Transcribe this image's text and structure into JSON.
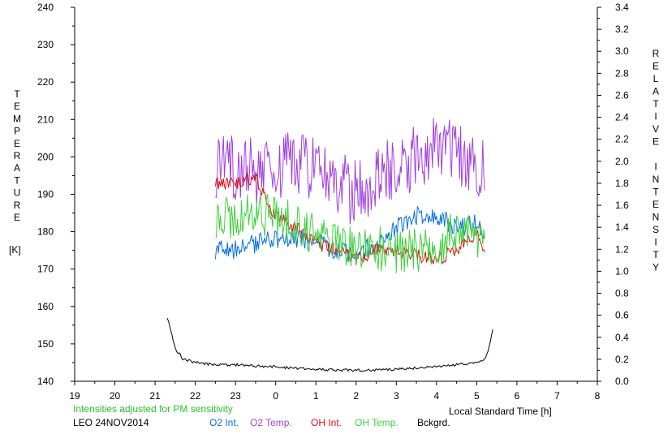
{
  "chart_data": {
    "type": "line",
    "x_unit": "hours (local standard time)",
    "xlim": [
      19,
      32
    ],
    "x_ticks": [
      19,
      20,
      21,
      22,
      23,
      24,
      25,
      26,
      27,
      28,
      29,
      30,
      31,
      32
    ],
    "x_tick_labels": [
      "19",
      "20",
      "21",
      "22",
      "23",
      "0",
      "1",
      "2",
      "3",
      "4",
      "5",
      "6",
      "7",
      "8"
    ],
    "xlabel": "Local Standard Time [h]",
    "ylim_left": [
      140,
      240
    ],
    "y_ticks_left": [
      140,
      150,
      160,
      170,
      180,
      190,
      200,
      210,
      220,
      230,
      240
    ],
    "ylabel_left": "TEMPERATURE",
    "ylabel_left_unit": "[K]",
    "ylim_right": [
      0.0,
      3.4
    ],
    "y_ticks_right": [
      "0.0",
      "0.2",
      "0.4",
      "0.6",
      "0.8",
      "1.0",
      "1.2",
      "1.4",
      "1.6",
      "1.8",
      "2.0",
      "2.2",
      "2.4",
      "2.6",
      "2.8",
      "3.0",
      "3.2",
      "3.4"
    ],
    "ylabel_right": "RELATIVE INTENSITY",
    "note": "Intensities adjusted for PM sensitivity",
    "station_label": "LEO 24NOV2014",
    "legend_position": "bottom",
    "series": [
      {
        "name": "O2 Int.",
        "axis": "right",
        "color": "#0a6ee6",
        "x": [
          22.5,
          23.0,
          23.5,
          24.0,
          24.5,
          25.0,
          25.5,
          26.0,
          26.5,
          27.0,
          27.5,
          28.0,
          28.5,
          29.0,
          29.2
        ],
        "y": [
          1.2,
          1.2,
          1.25,
          1.3,
          1.3,
          1.25,
          1.2,
          1.15,
          1.25,
          1.4,
          1.5,
          1.5,
          1.4,
          1.45,
          1.35
        ]
      },
      {
        "name": "O2 Temp.",
        "axis": "left",
        "color": "#a040e0",
        "x": [
          22.5,
          23.0,
          23.5,
          24.0,
          24.5,
          25.0,
          25.5,
          26.0,
          26.5,
          27.0,
          27.5,
          28.0,
          28.5,
          29.0,
          29.2
        ],
        "y": [
          198,
          197,
          196,
          197,
          198,
          196,
          193,
          190,
          194,
          198,
          200,
          203,
          201,
          198,
          196
        ]
      },
      {
        "name": "OH Int.",
        "axis": "right",
        "color": "#e01010",
        "x": [
          22.5,
          23.0,
          23.5,
          24.0,
          24.5,
          25.0,
          25.5,
          26.0,
          26.5,
          27.0,
          27.5,
          28.0,
          28.5,
          29.0,
          29.2
        ],
        "y": [
          1.8,
          1.8,
          1.85,
          1.5,
          1.4,
          1.25,
          1.2,
          1.1,
          1.2,
          1.2,
          1.15,
          1.1,
          1.2,
          1.35,
          1.2
        ]
      },
      {
        "name": "OH Temp.",
        "axis": "left",
        "color": "#40d040",
        "x": [
          22.5,
          23.0,
          23.5,
          24.0,
          24.5,
          25.0,
          25.5,
          26.0,
          26.5,
          27.0,
          27.5,
          28.0,
          28.5,
          29.0,
          29.2
        ],
        "y": [
          183,
          184,
          185,
          184,
          182,
          180,
          178,
          175,
          176,
          174,
          175,
          176,
          180,
          178,
          177
        ]
      },
      {
        "name": "Bckgrd.",
        "axis": "right",
        "color": "#000000",
        "x": [
          21.3,
          21.4,
          21.5,
          21.7,
          22.0,
          22.5,
          23.0,
          23.5,
          24.0,
          24.5,
          25.0,
          25.5,
          26.0,
          26.5,
          27.0,
          27.5,
          28.0,
          28.5,
          29.0,
          29.2,
          29.3,
          29.4
        ],
        "y": [
          0.58,
          0.45,
          0.3,
          0.2,
          0.17,
          0.15,
          0.15,
          0.14,
          0.13,
          0.12,
          0.11,
          0.1,
          0.1,
          0.1,
          0.11,
          0.12,
          0.13,
          0.15,
          0.17,
          0.2,
          0.3,
          0.48
        ]
      }
    ]
  }
}
